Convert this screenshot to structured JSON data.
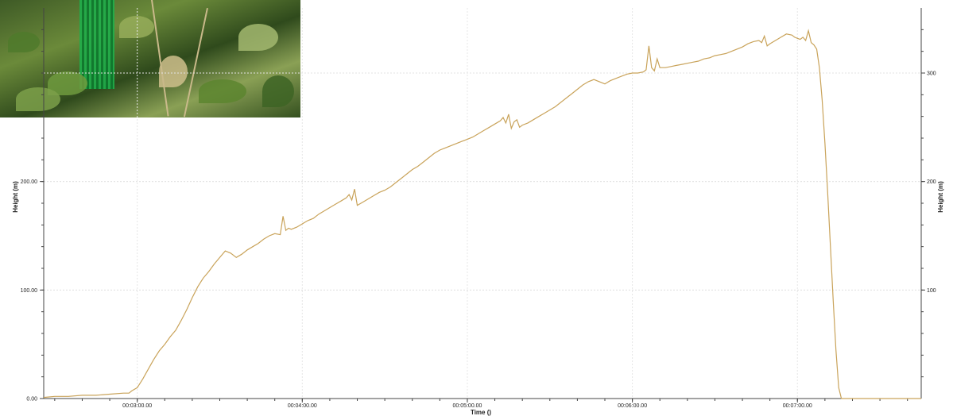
{
  "chart_data": {
    "type": "line",
    "xlabel": "Time ()",
    "ylabel_left": "Height (m)",
    "ylabel_right": "Height (m)",
    "x_unit": "seconds",
    "xlim": [
      146,
      465
    ],
    "ylim": [
      0,
      360
    ],
    "grid": true,
    "line_color": "#c9a35a",
    "left_ticks": [
      {
        "value": 0,
        "label": "0.00"
      },
      {
        "value": 100,
        "label": "100.00"
      },
      {
        "value": 200,
        "label": "200.00"
      }
    ],
    "right_ticks": [
      {
        "value": 100,
        "label": "100"
      },
      {
        "value": 200,
        "label": "200"
      },
      {
        "value": 300,
        "label": "300"
      }
    ],
    "x_ticks": [
      {
        "value": 180,
        "label": "00:03:00.00"
      },
      {
        "value": 240,
        "label": "00:04:00.00"
      },
      {
        "value": 300,
        "label": "00:05:00.00"
      },
      {
        "value": 360,
        "label": "00:06:00.00"
      },
      {
        "value": 420,
        "label": "00:07:00.00"
      }
    ],
    "series": [
      {
        "x": [
          146,
          150,
          155,
          160,
          165,
          170,
          175,
          177,
          178,
          180,
          182,
          184,
          186,
          188,
          190,
          192,
          194,
          196,
          198,
          200,
          202,
          204,
          206,
          208,
          210,
          212,
          214,
          216,
          218,
          220,
          222,
          224,
          226,
          228,
          230,
          232,
          233,
          234,
          235,
          236,
          238,
          240,
          242,
          244,
          246,
          248,
          250,
          252,
          254,
          256,
          257,
          258,
          259,
          260,
          262,
          264,
          266,
          268,
          270,
          272,
          274,
          276,
          278,
          280,
          282,
          284,
          286,
          288,
          290,
          292,
          294,
          296,
          298,
          300,
          302,
          304,
          306,
          308,
          310,
          312,
          313,
          314,
          315,
          316,
          317,
          318,
          319,
          320,
          322,
          324,
          326,
          328,
          330,
          332,
          334,
          336,
          338,
          340,
          342,
          344,
          346,
          348,
          350,
          352,
          354,
          356,
          358,
          360,
          362,
          364,
          365,
          366,
          367,
          368,
          369,
          370,
          372,
          374,
          376,
          378,
          380,
          382,
          384,
          386,
          388,
          390,
          392,
          394,
          396,
          398,
          400,
          402,
          404,
          406,
          407,
          408,
          409,
          410,
          412,
          414,
          416,
          418,
          419,
          420,
          421,
          422,
          423,
          424,
          425,
          426,
          427,
          428,
          429,
          430,
          431,
          432,
          433,
          434,
          435,
          436,
          437,
          438,
          440,
          445,
          450,
          455,
          460,
          465
        ],
        "y": [
          1,
          2,
          2,
          3,
          3,
          4,
          5,
          5,
          7,
          10,
          18,
          27,
          36,
          44,
          50,
          57,
          63,
          72,
          82,
          93,
          103,
          111,
          117,
          124,
          130,
          136,
          134,
          130,
          133,
          137,
          140,
          143,
          147,
          150,
          152,
          151,
          168,
          155,
          157,
          156,
          158,
          161,
          164,
          166,
          170,
          173,
          176,
          179,
          182,
          185,
          188,
          183,
          193,
          178,
          181,
          184,
          187,
          190,
          192,
          195,
          199,
          203,
          207,
          211,
          214,
          218,
          222,
          226,
          229,
          231,
          233,
          235,
          237,
          239,
          241,
          244,
          247,
          250,
          253,
          256,
          259,
          254,
          262,
          249,
          255,
          257,
          250,
          252,
          254,
          257,
          260,
          263,
          266,
          269,
          273,
          277,
          281,
          285,
          289,
          292,
          294,
          292,
          290,
          293,
          295,
          297,
          299,
          300,
          300,
          301,
          303,
          325,
          305,
          302,
          313,
          305,
          305,
          306,
          307,
          308,
          309,
          310,
          311,
          313,
          314,
          316,
          317,
          318,
          320,
          322,
          324,
          327,
          329,
          330,
          328,
          334,
          325,
          327,
          330,
          333,
          336,
          335,
          333,
          332,
          331,
          333,
          330,
          339,
          328,
          326,
          322,
          305,
          275,
          235,
          190,
          140,
          90,
          45,
          10,
          0,
          0,
          0,
          0,
          0,
          0,
          0,
          0,
          0
        ]
      }
    ]
  }
}
